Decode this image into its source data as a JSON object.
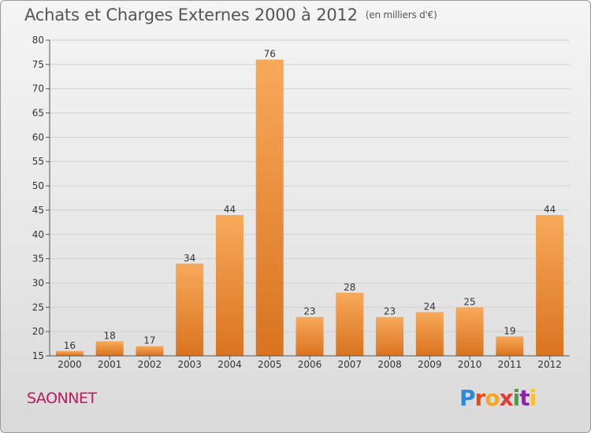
{
  "title": "Achats et Charges Externes 2000 à 2012",
  "subtitle": "(en milliers d'€)",
  "commune": "SAONNET",
  "logo": {
    "letters": [
      "P",
      "r",
      "o",
      "x",
      "i",
      "t",
      "i"
    ],
    "colors": [
      "#2e8ad8",
      "#e64a19",
      "#f5a623",
      "#e53935",
      "#43a047",
      "#8e24aa",
      "#fbc02d"
    ]
  },
  "chart_data": {
    "type": "bar",
    "categories": [
      "2000",
      "2001",
      "2002",
      "2003",
      "2004",
      "2005",
      "2006",
      "2007",
      "2008",
      "2009",
      "2010",
      "2011",
      "2012"
    ],
    "values": [
      16,
      18,
      17,
      34,
      44,
      76,
      23,
      28,
      23,
      24,
      25,
      19,
      44
    ],
    "ylim": [
      15,
      80
    ],
    "yticks": [
      15,
      20,
      25,
      30,
      35,
      40,
      45,
      50,
      55,
      60,
      65,
      70,
      75,
      80
    ],
    "grid": true,
    "bar_color_top": "#f7a95a",
    "bar_color_bottom": "#d9731f"
  }
}
